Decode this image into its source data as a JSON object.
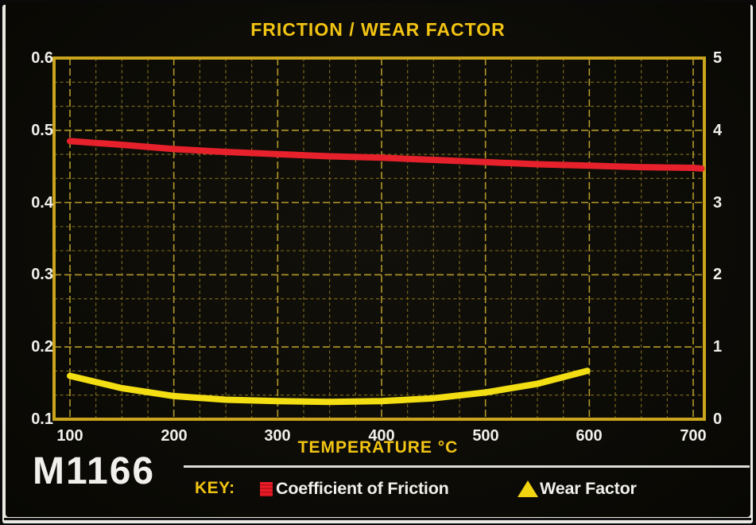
{
  "card": {
    "model": "M1166",
    "title": "FRICTION / WEAR FACTOR",
    "x_axis": {
      "label": "TEMPERATURE °C",
      "ticks": [
        "100",
        "200",
        "300",
        "400",
        "500",
        "600",
        "700"
      ]
    },
    "left_axis": {
      "ticks": [
        "0.6",
        "0.5",
        "0.4",
        "0.3",
        "0.2",
        "0.1"
      ]
    },
    "right_axis": {
      "ticks": [
        "5",
        "4",
        "3",
        "2",
        "1",
        "0"
      ]
    },
    "key": {
      "label": "KEY:",
      "series1_label": "Coefficient of Friction",
      "series2_label": "Wear Factor"
    },
    "colors": {
      "title_yellow": "#f2c413",
      "grid_major": "#b1982a",
      "grid_minor": "#7f6d1d",
      "plot_border": "#c9a41c",
      "friction_line": "#e6212b",
      "wear_line": "#f2de12",
      "tick_text": "#f0efeb",
      "card_background": "#0d0c07"
    }
  },
  "chart_data": {
    "type": "line",
    "title": "FRICTION / WEAR FACTOR",
    "xlabel": "TEMPERATURE °C",
    "x_range": [
      100,
      700
    ],
    "grid": "on, dashed yellow major every 100 °C / 0.1, minor subdivisions",
    "legend_position": "bottom key row",
    "left_axis": {
      "label": "Coefficient of Friction",
      "range": [
        0.1,
        0.6
      ]
    },
    "right_axis": {
      "label": "Wear Factor",
      "range": [
        0,
        5
      ]
    },
    "series": [
      {
        "name": "Coefficient of Friction",
        "axis": "left",
        "color": "#e6212b",
        "x": [
          100,
          150,
          200,
          250,
          300,
          350,
          400,
          450,
          500,
          550,
          600,
          650,
          700,
          708
        ],
        "y": [
          0.485,
          0.48,
          0.474,
          0.47,
          0.467,
          0.464,
          0.462,
          0.459,
          0.456,
          0.453,
          0.451,
          0.449,
          0.448,
          0.447
        ]
      },
      {
        "name": "Wear Factor",
        "axis": "right",
        "color": "#f2de12",
        "x": [
          100,
          150,
          200,
          250,
          300,
          350,
          400,
          450,
          500,
          550,
          598
        ],
        "y": [
          0.6,
          0.43,
          0.32,
          0.27,
          0.25,
          0.24,
          0.25,
          0.29,
          0.37,
          0.49,
          0.67
        ]
      }
    ]
  }
}
